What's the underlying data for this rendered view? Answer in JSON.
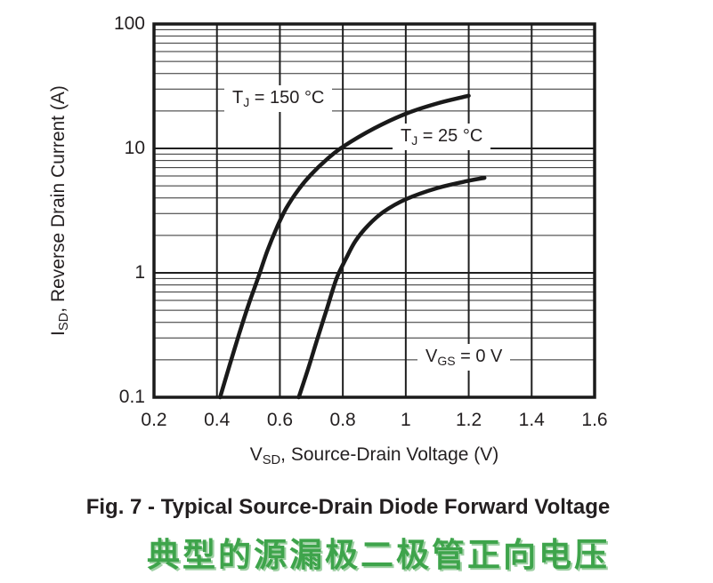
{
  "figure": {
    "caption_en": "Fig. 7 - Typical Source-Drain Diode Forward Voltage",
    "caption_zh": "典型的源漏极二极管正向电压",
    "caption_zh_color": "#3ea44b",
    "caption_zh_shadow": "#9fd0a4"
  },
  "labels": {
    "x_title": {
      "sym": "V",
      "sub": "SD",
      "rest": ", Source-Drain Voltage (V)"
    },
    "y_title": {
      "sym": "I",
      "sub": "SD",
      "rest": ", Reverse Drain Current (A)"
    },
    "tj150": {
      "sym": "T",
      "sub": "J",
      "rest": " = 150 °C"
    },
    "tj25": {
      "sym": "T",
      "sub": "J",
      "rest": " = 25 °C"
    },
    "vgs": {
      "sym": "V",
      "sub": "GS",
      "rest": " = 0 V"
    }
  },
  "axes": {
    "x_tick_labels": [
      "0.2",
      "0.4",
      "0.6",
      "0.8",
      "1",
      "1.2",
      "1.4",
      "1.6"
    ],
    "y_tick_labels": [
      "0.1",
      "1",
      "10",
      "100"
    ]
  },
  "colors": {
    "curve": "#1a1a1a",
    "border": "#1a1a1a",
    "grid_major": "#1f1f1f",
    "grid_minor": "#2e2e2e",
    "text": "#231f20"
  },
  "chart_data": {
    "type": "line",
    "title": "Fig. 7 - Typical Source-Drain Diode Forward Voltage",
    "xlabel": "VSD, Source-Drain Voltage (V)",
    "ylabel": "ISD, Reverse Drain Current (A)",
    "x_axis": {
      "scale": "linear",
      "min": 0.2,
      "max": 1.6,
      "ticks": [
        0.2,
        0.4,
        0.6,
        0.8,
        1.0,
        1.2,
        1.4,
        1.6
      ]
    },
    "y_axis": {
      "scale": "log",
      "min": 0.1,
      "max": 100,
      "ticks": [
        0.1,
        1,
        10,
        100
      ],
      "minor_gridlines": true
    },
    "annotation": "VGS = 0 V",
    "legend_position": "inline-labels",
    "series": [
      {
        "name": "TJ = 150 °C",
        "points": [
          [
            0.41,
            0.1
          ],
          [
            0.44,
            0.18
          ],
          [
            0.47,
            0.32
          ],
          [
            0.5,
            0.55
          ],
          [
            0.53,
            0.9
          ],
          [
            0.56,
            1.5
          ],
          [
            0.59,
            2.3
          ],
          [
            0.62,
            3.3
          ],
          [
            0.66,
            4.7
          ],
          [
            0.7,
            6.2
          ],
          [
            0.75,
            8.2
          ],
          [
            0.8,
            10.3
          ],
          [
            0.9,
            14.5
          ],
          [
            1.0,
            19.0
          ],
          [
            1.1,
            23.0
          ],
          [
            1.2,
            26.5
          ]
        ]
      },
      {
        "name": "TJ = 25 °C",
        "points": [
          [
            0.66,
            0.1
          ],
          [
            0.69,
            0.17
          ],
          [
            0.72,
            0.3
          ],
          [
            0.75,
            0.52
          ],
          [
            0.78,
            0.9
          ],
          [
            0.81,
            1.3
          ],
          [
            0.84,
            1.8
          ],
          [
            0.88,
            2.4
          ],
          [
            0.93,
            3.1
          ],
          [
            1.0,
            3.9
          ],
          [
            1.1,
            4.8
          ],
          [
            1.2,
            5.5
          ],
          [
            1.25,
            5.8
          ]
        ]
      }
    ]
  }
}
